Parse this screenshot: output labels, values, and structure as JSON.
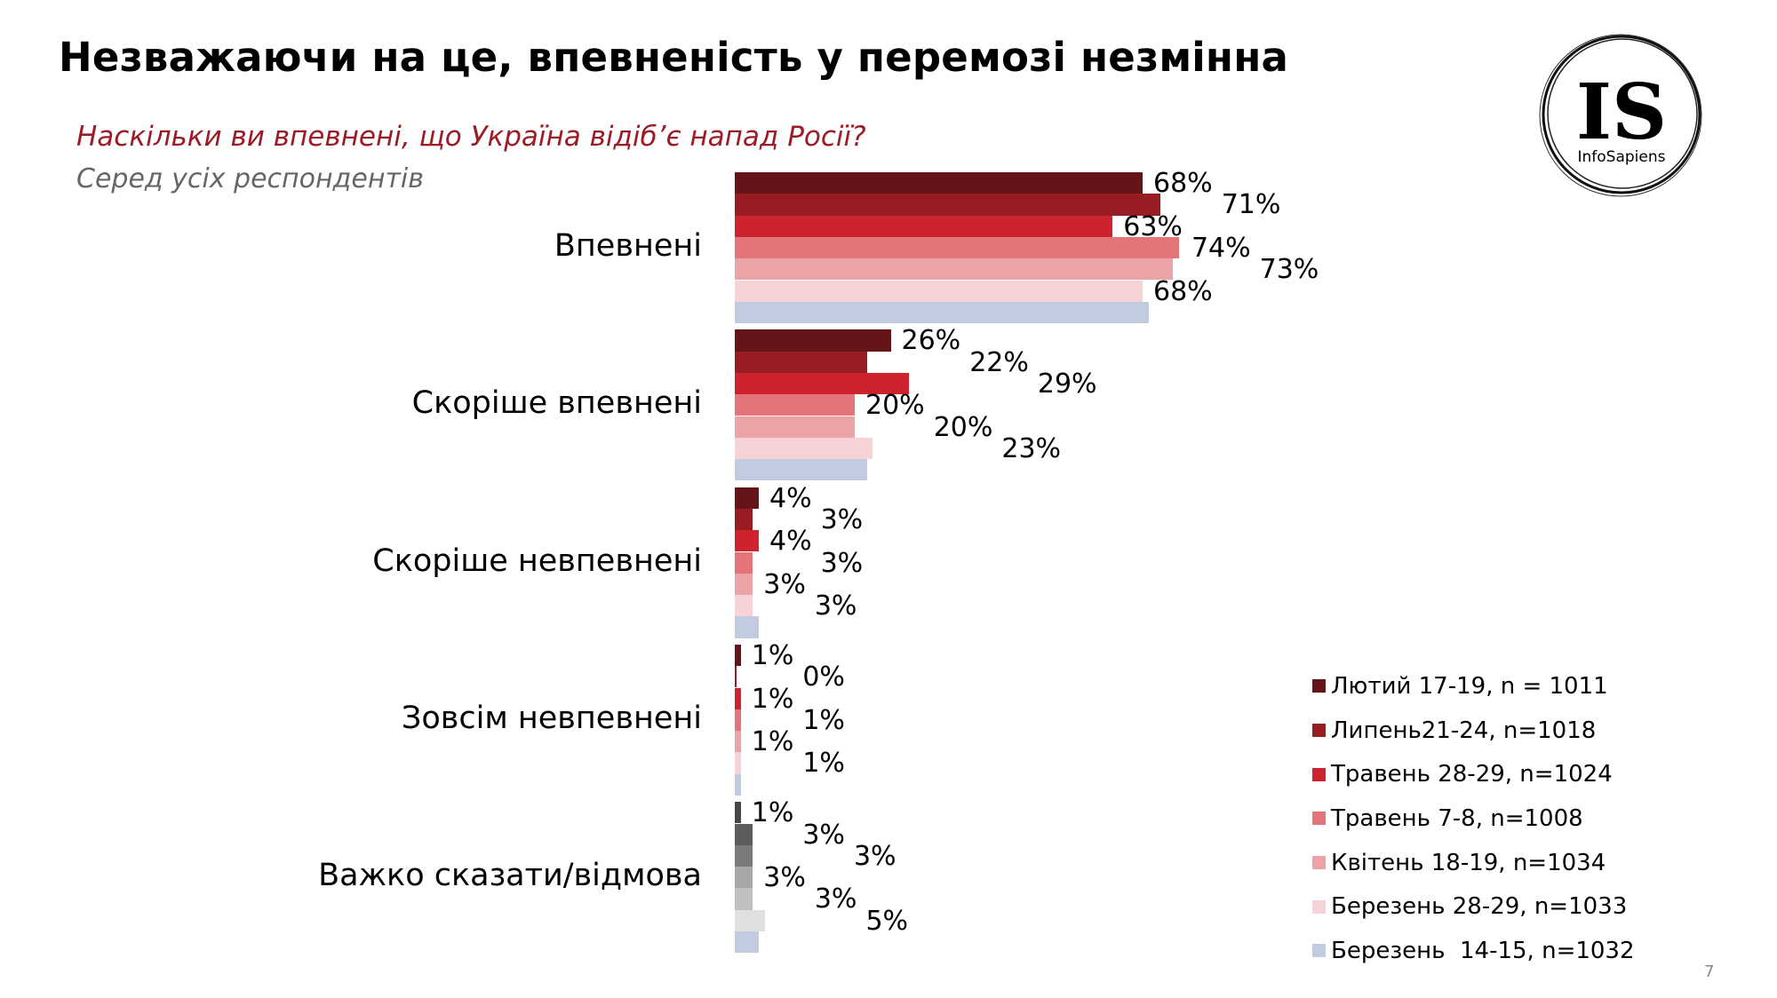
{
  "header": {
    "title": "Незважаючи на це, впевненість у перемозі незмінна",
    "question": "Наскільки ви впевнені, що Україна відіб’є напад Росії?",
    "subtitle": "Серед усіх респондентів"
  },
  "logo": {
    "mark": "IS",
    "name": "InfoSapiens"
  },
  "page_number": "7",
  "chart_data": {
    "type": "bar",
    "orientation": "horizontal",
    "title": "Наскільки ви впевнені, що Україна відіб’є напад Росії?",
    "xlabel": "",
    "ylabel": "",
    "xlim": [
      0,
      100
    ],
    "grid": false,
    "legend_position": "bottom-right",
    "categories": [
      "Впевнені",
      "Скоріше впевнені",
      "Скоріше невпевнені",
      "Зовсім невпевнені",
      "Важко сказати/відмова"
    ],
    "series": [
      {
        "name": "Лютий 17-19, n = 1011",
        "color": "#65151a",
        "values": [
          68,
          26,
          4,
          1,
          1
        ],
        "labels": [
          "68%",
          "26%",
          "4%",
          "1%",
          "1%"
        ]
      },
      {
        "name": "Липень21-24, n=1018",
        "color": "#981d22",
        "values": [
          71,
          22,
          3,
          0,
          3
        ],
        "labels": [
          "71%",
          "22%",
          "3%",
          "0%",
          "3%"
        ]
      },
      {
        "name": "Травень 28-29, n=1024",
        "color": "#cc232c",
        "values": [
          63,
          29,
          4,
          1,
          3
        ],
        "labels": [
          "63%",
          "29%",
          "4%",
          "1%",
          "3%"
        ]
      },
      {
        "name": "Травень 7-8, n=1008",
        "color": "#e5747a",
        "values": [
          74,
          20,
          3,
          1,
          3
        ],
        "labels": [
          "74%",
          "20%",
          "3%",
          "1%",
          "3%"
        ]
      },
      {
        "name": "Квітень 18-19, n=1034",
        "color": "#eca3a8",
        "values": [
          73,
          20,
          3,
          1,
          3
        ],
        "labels": [
          "73%",
          "20%",
          "3%",
          "1%",
          "3%"
        ]
      },
      {
        "name": "Березень 28-29, n=1033",
        "color": "#f7d2d6",
        "values": [
          68,
          23,
          3,
          1,
          5
        ],
        "labels": [
          "68%",
          "23%",
          "3%",
          "1%",
          "5%"
        ]
      },
      {
        "name": "Березень  14-15, n=1032",
        "color": "#c2cce0",
        "values": [
          69,
          22,
          4,
          1,
          4
        ],
        "labels": [
          null,
          null,
          null,
          null,
          null
        ]
      }
    ],
    "last_category_colors": [
      "#474747",
      "#5c5c5c",
      "#7a7a7a",
      "#a8a8a8",
      "#c0c0c0",
      "#e0e0e0",
      "#c2cce0"
    ]
  }
}
